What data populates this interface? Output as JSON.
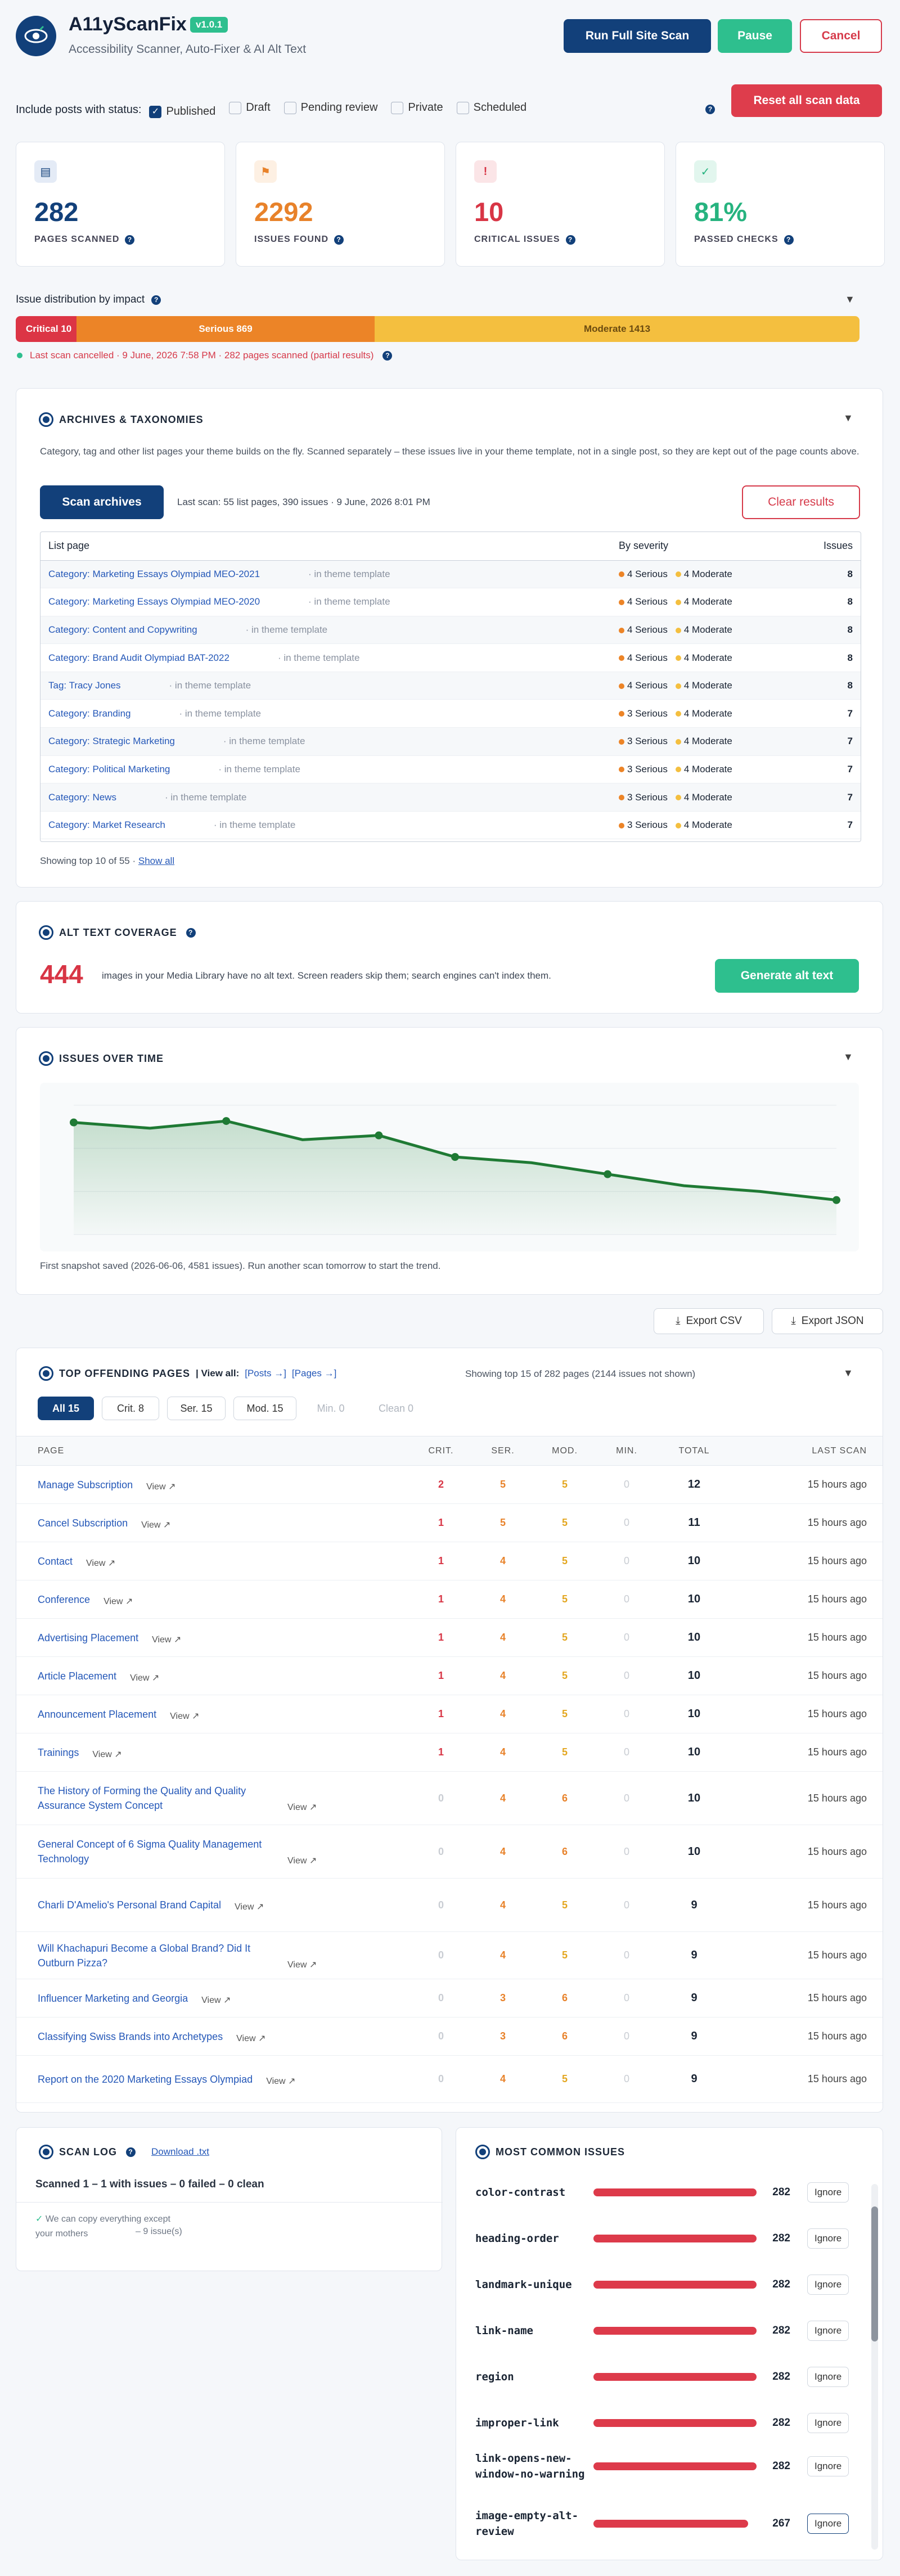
{
  "header": {
    "app_name": "A11yScanFix",
    "version": "v1.0.1",
    "subtitle": "Accessibility Scanner, Auto-Fixer & AI Alt Text",
    "run_full_scan": "Run Full Site Scan",
    "pause": "Pause",
    "cancel": "Cancel"
  },
  "filter": {
    "label": "Include posts with status:",
    "statuses": [
      {
        "label": "Published",
        "checked": true
      },
      {
        "label": "Draft",
        "checked": false
      },
      {
        "label": "Pending review",
        "checked": false
      },
      {
        "label": "Private",
        "checked": false
      },
      {
        "label": "Scheduled",
        "checked": false
      }
    ],
    "reset": "Reset all scan data"
  },
  "stats": [
    {
      "value": "282",
      "label": "PAGES SCANNED",
      "color": "#12407a"
    },
    {
      "value": "2292",
      "label": "ISSUES FOUND",
      "color": "#e8822a"
    },
    {
      "value": "10",
      "label": "CRITICAL ISSUES",
      "color": "#d83545"
    },
    {
      "value": "81%",
      "label": "PASSED CHECKS",
      "color": "#26b37f"
    }
  ],
  "impact": {
    "title": "Issue distribution by impact",
    "segments": [
      {
        "label": "Critical 10",
        "value": 10,
        "color": "#dc3545"
      },
      {
        "label": "Serious 869",
        "value": 869,
        "color": "#ec8427"
      },
      {
        "label": "Moderate 1413",
        "value": 1413,
        "color": "#f4bf3f"
      }
    ],
    "status": "Last scan cancelled · 9 June, 2026 7:58 PM · 282 pages scanned (partial results)"
  },
  "archives": {
    "title": "ARCHIVES & TAXONOMIES",
    "description": "Category, tag and other list pages your theme builds on the fly. Scanned separately – these issues live in your theme template, not in a single post, so they are kept out of the page counts above.",
    "scan_button": "Scan archives",
    "last_scan": "Last scan: 55 list pages, 390 issues · 9 June, 2026 8:01 PM",
    "clear": "Clear results",
    "col_page": "List page",
    "col_severity": "By severity",
    "col_issues": "Issues",
    "rows": [
      {
        "prefix": "Category: ",
        "name": "Marketing Essays Olympiad MEO-2021",
        "note": "· in theme template",
        "serious": "4 Serious",
        "moderate": "4 Moderate",
        "issues": "8"
      },
      {
        "prefix": "Category: ",
        "name": "Marketing Essays Olympiad MEO-2020",
        "note": "· in theme template",
        "serious": "4 Serious",
        "moderate": "4 Moderate",
        "issues": "8"
      },
      {
        "prefix": "Category: ",
        "name": "Content and Copywriting",
        "note": "· in theme template",
        "serious": "4 Serious",
        "moderate": "4 Moderate",
        "issues": "8"
      },
      {
        "prefix": "Category: ",
        "name": "Brand Audit Olympiad BAT-2022",
        "note": "· in theme template",
        "serious": "4 Serious",
        "moderate": "4 Moderate",
        "issues": "8"
      },
      {
        "prefix": "Tag: ",
        "name": "Tracy Jones",
        "note": "· in theme template",
        "serious": "4 Serious",
        "moderate": "4 Moderate",
        "issues": "8"
      },
      {
        "prefix": "Category: ",
        "name": "Branding",
        "note": "· in theme template",
        "serious": "3 Serious",
        "moderate": "4 Moderate",
        "issues": "7"
      },
      {
        "prefix": "Category: ",
        "name": "Strategic Marketing",
        "note": "· in theme template",
        "serious": "3 Serious",
        "moderate": "4 Moderate",
        "issues": "7"
      },
      {
        "prefix": "Category: ",
        "name": "Political Marketing",
        "note": "· in theme template",
        "serious": "3 Serious",
        "moderate": "4 Moderate",
        "issues": "7"
      },
      {
        "prefix": "Category: ",
        "name": "News",
        "note": "· in theme template",
        "serious": "3 Serious",
        "moderate": "4 Moderate",
        "issues": "7"
      },
      {
        "prefix": "Category: ",
        "name": "Market Research",
        "note": "· in theme template",
        "serious": "3 Serious",
        "moderate": "4 Moderate",
        "issues": "7"
      }
    ],
    "showing": "Showing top 10 of 55 ·",
    "show_all": "Show all"
  },
  "alt": {
    "title": "ALT TEXT COVERAGE",
    "count": "444",
    "text": "images in your Media Library have no alt text. Screen readers skip them; search engines can't index them.",
    "button": "Generate alt text"
  },
  "chart_data": {
    "type": "line",
    "title": "ISSUES OVER TIME",
    "series": [
      {
        "values": [
          2390,
          2370,
          2395,
          2330,
          2345,
          2270,
          2250,
          2210,
          2170,
          2150,
          2120
        ]
      }
    ],
    "x": [
      0,
      1,
      2,
      3,
      4,
      5,
      6,
      7,
      8,
      9,
      10
    ],
    "ylim": [
      2000,
      2450
    ],
    "grid": true,
    "note": "First snapshot saved (2026-06-06, 4581 issues). Run another scan tomorrow to start the trend."
  },
  "export": {
    "csv": "Export CSV",
    "json": "Export JSON"
  },
  "top": {
    "title": "TOP OFFENDING PAGES",
    "view_all": "| View all:",
    "posts": "[Posts →]",
    "pages": "[Pages →]",
    "showing": "Showing top 15 of 282 pages (2144 issues not shown)",
    "chips": [
      "All 15",
      "Crit. 8",
      "Ser. 15",
      "Mod. 15",
      "Min. 0",
      "Clean 0"
    ],
    "cols": [
      "PAGE",
      "CRIT.",
      "SER.",
      "MOD.",
      "MIN.",
      "TOTAL",
      "LAST SCAN"
    ],
    "view": "View ↗",
    "rows": [
      {
        "page": "Manage Subscription",
        "crit": "2",
        "ser": "5",
        "mod": "5",
        "min": "0",
        "total": "12",
        "last": "15 hours ago"
      },
      {
        "page": "Cancel Subscription",
        "crit": "1",
        "ser": "5",
        "mod": "5",
        "min": "0",
        "total": "11",
        "last": "15 hours ago"
      },
      {
        "page": "Contact",
        "crit": "1",
        "ser": "4",
        "mod": "5",
        "min": "0",
        "total": "10",
        "last": "15 hours ago"
      },
      {
        "page": "Conference",
        "crit": "1",
        "ser": "4",
        "mod": "5",
        "min": "0",
        "total": "10",
        "last": "15 hours ago"
      },
      {
        "page": "Advertising Placement",
        "crit": "1",
        "ser": "4",
        "mod": "5",
        "min": "0",
        "total": "10",
        "last": "15 hours ago"
      },
      {
        "page": "Article Placement",
        "crit": "1",
        "ser": "4",
        "mod": "5",
        "min": "0",
        "total": "10",
        "last": "15 hours ago"
      },
      {
        "page": "Announcement Placement",
        "crit": "1",
        "ser": "4",
        "mod": "5",
        "min": "0",
        "total": "10",
        "last": "15 hours ago"
      },
      {
        "page": "Trainings",
        "crit": "1",
        "ser": "4",
        "mod": "5",
        "min": "0",
        "total": "10",
        "last": "15 hours ago"
      },
      {
        "page": "The History of Forming the Quality and Quality Assurance System Concept",
        "crit": "0",
        "ser": "4",
        "mod": "6",
        "min": "0",
        "total": "10",
        "last": "15 hours ago"
      },
      {
        "page": "General Concept of 6 Sigma Quality Management Technology",
        "crit": "0",
        "ser": "4",
        "mod": "6",
        "min": "0",
        "total": "10",
        "last": "15 hours ago"
      },
      {
        "page": "Charli D'Amelio's Personal Brand Capital",
        "crit": "0",
        "ser": "4",
        "mod": "5",
        "min": "0",
        "total": "9",
        "last": "15 hours ago"
      },
      {
        "page": "Will Khachapuri Become a Global Brand? Did It Outburn Pizza?",
        "crit": "0",
        "ser": "4",
        "mod": "5",
        "min": "0",
        "total": "9",
        "last": "15 hours ago"
      },
      {
        "page": "Influencer Marketing and Georgia",
        "crit": "0",
        "ser": "3",
        "mod": "6",
        "min": "0",
        "total": "9",
        "last": "15 hours ago"
      },
      {
        "page": "Classifying Swiss Brands into Archetypes",
        "crit": "0",
        "ser": "3",
        "mod": "6",
        "min": "0",
        "total": "9",
        "last": "15 hours ago"
      },
      {
        "page": "Report on the 2020 Marketing Essays Olympiad",
        "crit": "0",
        "ser": "4",
        "mod": "5",
        "min": "0",
        "total": "9",
        "last": "15 hours ago"
      }
    ]
  },
  "log": {
    "title": "SCAN LOG",
    "download": "Download .txt",
    "summary": "Scanned 1 – 1 with issues – 0 failed – 0 clean",
    "entry": "We can copy everything except your mothers",
    "entry_count": "– 9 issue(s)"
  },
  "common": {
    "title": "MOST COMMON ISSUES",
    "ignore": "Ignore",
    "items": [
      {
        "name": "color-contrast",
        "count": "282"
      },
      {
        "name": "heading-order",
        "count": "282"
      },
      {
        "name": "landmark-unique",
        "count": "282"
      },
      {
        "name": "link-name",
        "count": "282"
      },
      {
        "name": "region",
        "count": "282"
      },
      {
        "name": "improper-link",
        "count": "282"
      },
      {
        "name": "link-opens-new-window-no-warning",
        "count": "282"
      },
      {
        "name": "image-empty-alt-review",
        "count": "267"
      }
    ]
  }
}
